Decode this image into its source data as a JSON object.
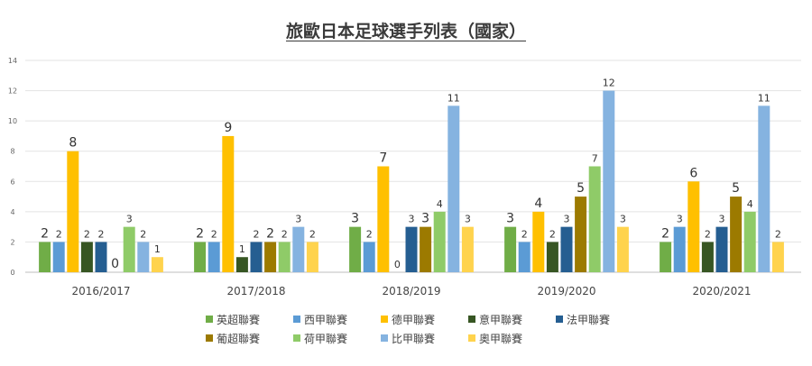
{
  "chart_data": {
    "type": "bar",
    "title": "旅歐日本足球選手列表（國家）",
    "categories": [
      "2016/2017",
      "2017/2018",
      "2018/2019",
      "2019/2020",
      "2020/2021"
    ],
    "ylim": [
      0,
      14
    ],
    "yticks": [
      0,
      2,
      4,
      6,
      8,
      10,
      12,
      14
    ],
    "grid": true,
    "legend_position": "bottom",
    "series": [
      {
        "name": "英超聯賽",
        "color": "#70ad47",
        "values": [
          2,
          2,
          3,
          3,
          2
        ]
      },
      {
        "name": "西甲聯賽",
        "color": "#5b9bd5",
        "values": [
          2,
          2,
          2,
          2,
          3
        ]
      },
      {
        "name": "德甲聯賽",
        "color": "#ffc000",
        "values": [
          8,
          9,
          7,
          4,
          6
        ]
      },
      {
        "name": "意甲聯賽",
        "color": "#375623",
        "values": [
          2,
          1,
          0,
          2,
          2
        ]
      },
      {
        "name": "法甲聯賽",
        "color": "#255e91",
        "values": [
          2,
          2,
          3,
          3,
          3
        ]
      },
      {
        "name": "葡超聯賽",
        "color": "#9c7a00",
        "values": [
          0,
          2,
          3,
          5,
          5
        ]
      },
      {
        "name": "荷甲聯賽",
        "color": "#8fcb68",
        "values": [
          3,
          2,
          4,
          7,
          4
        ]
      },
      {
        "name": "比甲聯賽",
        "color": "#85b3e0",
        "values": [
          2,
          3,
          11,
          12,
          11
        ]
      },
      {
        "name": "奧甲聯賽",
        "color": "#ffd34d",
        "values": [
          1,
          2,
          3,
          3,
          2
        ]
      }
    ]
  }
}
